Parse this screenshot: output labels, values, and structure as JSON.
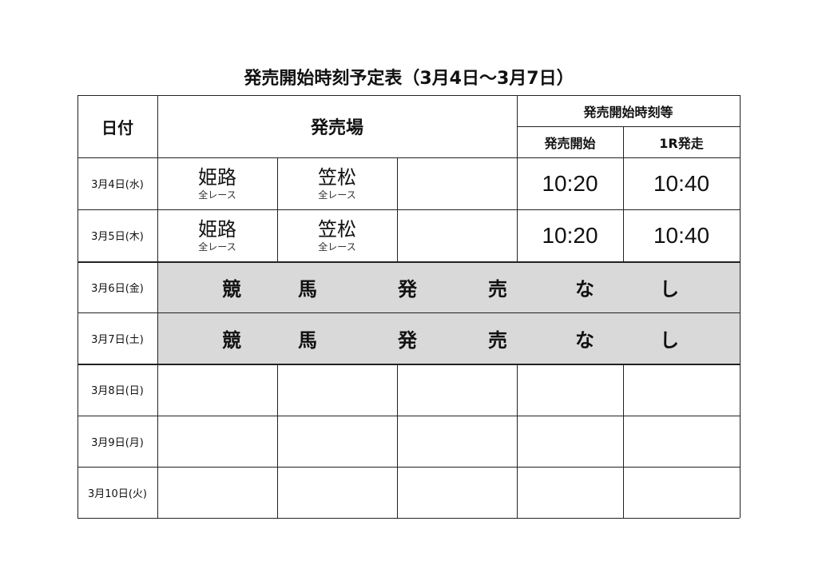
{
  "title": "発売開始時刻予定表（3月4日～3月7日）",
  "header": {
    "date": "日付",
    "venue": "発売場",
    "times_group": "発売開始時刻等",
    "start": "発売開始",
    "first_race": "1R発走"
  },
  "rows": [
    {
      "date": "3月4日(水)",
      "venues": [
        {
          "name": "姫路",
          "sub": "全レース"
        },
        {
          "name": "笠松",
          "sub": "全レース"
        }
      ],
      "start": "10:20",
      "first_race": "10:40"
    },
    {
      "date": "3月5日(木)",
      "venues": [
        {
          "name": "姫路",
          "sub": "全レース"
        },
        {
          "name": "笠松",
          "sub": "全レース"
        }
      ],
      "start": "10:20",
      "first_race": "10:40"
    },
    {
      "date": "3月6日(金)",
      "no_sale": [
        "競",
        "馬",
        "発",
        "売",
        "な",
        "し"
      ]
    },
    {
      "date": "3月7日(土)",
      "no_sale": [
        "競",
        "馬",
        "発",
        "売",
        "な",
        "し"
      ]
    },
    {
      "date": "3月8日(日)"
    },
    {
      "date": "3月9日(月)"
    },
    {
      "date": "3月10日(火)"
    }
  ],
  "colors": {
    "no_sale_bg": "#d9d9d9"
  }
}
